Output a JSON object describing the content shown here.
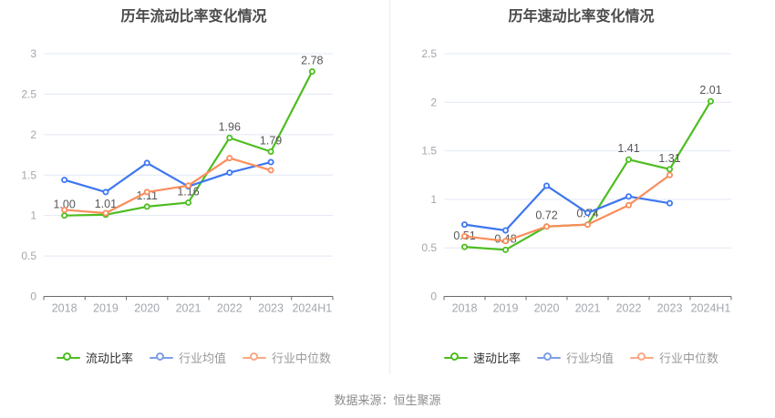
{
  "page": {
    "background": "#ffffff",
    "footer_note": "数据来源：恒生聚源"
  },
  "colors": {
    "grid": "#e2e8f4",
    "axis": "#6b6b6b",
    "tick_label": "#a2a7ad",
    "data_label": "#575757",
    "title": "#4a4a4a",
    "divider": "#ececec",
    "footer": "#8c8c8c"
  },
  "chart_data": [
    {
      "type": "line",
      "title": "历年流动比率变化情况",
      "categories": [
        "2018",
        "2019",
        "2020",
        "2021",
        "2022",
        "2023",
        "2024H1"
      ],
      "ylim": [
        0,
        3
      ],
      "yticks": [
        0,
        0.5,
        1,
        1.5,
        2,
        2.5,
        3
      ],
      "ytick_labels": [
        "0",
        "0.5",
        "1",
        "1.5",
        "2",
        "2.5",
        "3"
      ],
      "grid": true,
      "legend_position": "bottom",
      "series": [
        {
          "name": "流动比率",
          "line_color": "#4dbd20",
          "legend_marker_color": "#4dbd20",
          "legend_label_color": "#333333",
          "values": [
            1.0,
            1.01,
            1.11,
            1.16,
            1.96,
            1.79,
            2.78
          ],
          "point_labels": [
            "1.00",
            "1.01",
            "1.11",
            "1.16",
            "1.96",
            "1.79",
            "2.78"
          ]
        },
        {
          "name": "行业均值",
          "line_color": "#3d76f0",
          "legend_marker_color": "#7d9fe8",
          "legend_label_color": "#999999",
          "values": [
            1.44,
            1.29,
            1.65,
            1.36,
            1.53,
            1.66,
            null
          ]
        },
        {
          "name": "行业中位数",
          "line_color": "#fb8d5b",
          "legend_marker_color": "#f9a987",
          "legend_label_color": "#999999",
          "values": [
            1.07,
            1.03,
            1.29,
            1.37,
            1.71,
            1.56,
            null
          ]
        }
      ]
    },
    {
      "type": "line",
      "title": "历年速动比率变化情况",
      "categories": [
        "2018",
        "2019",
        "2020",
        "2021",
        "2022",
        "2023",
        "2024H1"
      ],
      "ylim": [
        0,
        2.5
      ],
      "yticks": [
        0,
        0.5,
        1,
        1.5,
        2,
        2.5
      ],
      "ytick_labels": [
        "0",
        "0.5",
        "1",
        "1.5",
        "2",
        "2.5"
      ],
      "grid": true,
      "legend_position": "bottom",
      "series": [
        {
          "name": "速动比率",
          "line_color": "#4dbd20",
          "legend_marker_color": "#4dbd20",
          "legend_label_color": "#333333",
          "values": [
            0.51,
            0.48,
            0.72,
            0.74,
            1.41,
            1.31,
            2.01
          ],
          "point_labels": [
            "0.51",
            "0.48",
            "0.72",
            "0.74",
            "1.41",
            "1.31",
            "2.01"
          ]
        },
        {
          "name": "行业均值",
          "line_color": "#3d76f0",
          "legend_marker_color": "#7d9fe8",
          "legend_label_color": "#999999",
          "values": [
            0.74,
            0.68,
            1.14,
            0.86,
            1.03,
            0.96,
            null
          ]
        },
        {
          "name": "行业中位数",
          "line_color": "#fb8d5b",
          "legend_marker_color": "#f9a987",
          "legend_label_color": "#999999",
          "values": [
            0.62,
            0.57,
            0.72,
            0.74,
            0.94,
            1.25,
            null
          ]
        }
      ]
    }
  ]
}
